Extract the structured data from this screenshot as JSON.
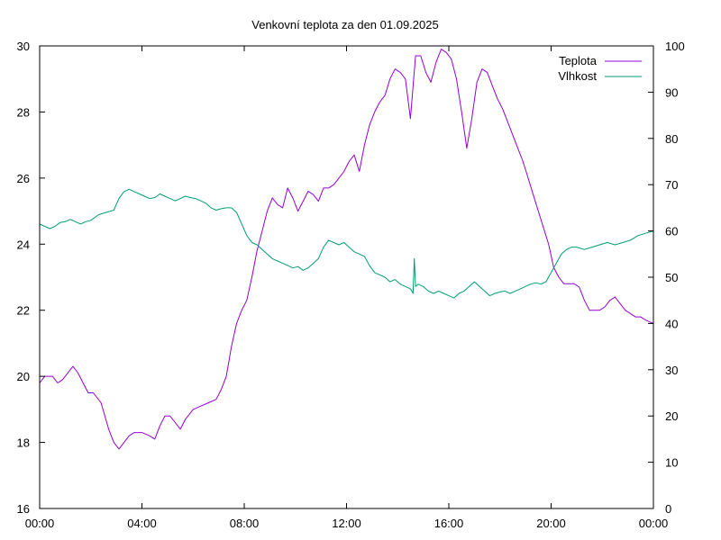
{
  "chart_data": {
    "type": "line",
    "title": "Venkovní teplota za den 01.09.2025",
    "x_tick_labels": [
      "00:00",
      "04:00",
      "08:00",
      "12:00",
      "16:00",
      "20:00",
      "00:00"
    ],
    "x_range_hours": [
      0,
      24
    ],
    "y_left": {
      "range": [
        16,
        30
      ],
      "ticks": [
        16,
        18,
        20,
        22,
        24,
        26,
        28,
        30
      ]
    },
    "y_right": {
      "range": [
        0,
        100
      ],
      "ticks": [
        0,
        10,
        20,
        30,
        40,
        50,
        60,
        70,
        80,
        90,
        100
      ]
    },
    "grid": false,
    "legend_position": "top-right",
    "series": [
      {
        "name": "Teplota",
        "axis": "left",
        "color": "#9400d3",
        "x": [
          0,
          0.2,
          0.5,
          0.7,
          0.9,
          1.1,
          1.3,
          1.5,
          1.7,
          1.9,
          2.1,
          2.4,
          2.7,
          2.9,
          3.1,
          3.3,
          3.5,
          3.7,
          4.0,
          4.3,
          4.5,
          4.7,
          4.9,
          5.1,
          5.3,
          5.5,
          5.7,
          6.0,
          6.3,
          6.6,
          6.9,
          7.1,
          7.3,
          7.5,
          7.7,
          7.9,
          8.1,
          8.3,
          8.5,
          8.7,
          8.9,
          9.1,
          9.3,
          9.5,
          9.7,
          9.9,
          10.1,
          10.3,
          10.5,
          10.7,
          10.9,
          11.1,
          11.3,
          11.5,
          11.7,
          11.9,
          12.1,
          12.3,
          12.5,
          12.7,
          12.9,
          13.1,
          13.3,
          13.5,
          13.7,
          13.9,
          14.1,
          14.3,
          14.5,
          14.7,
          14.9,
          15.1,
          15.3,
          15.5,
          15.7,
          15.9,
          16.1,
          16.3,
          16.5,
          16.7,
          16.9,
          17.1,
          17.3,
          17.5,
          17.7,
          17.9,
          18.1,
          18.3,
          18.5,
          18.7,
          18.9,
          19.1,
          19.3,
          19.5,
          19.7,
          19.9,
          20.1,
          20.3,
          20.5,
          20.7,
          20.9,
          21.1,
          21.3,
          21.5,
          21.7,
          21.9,
          22.1,
          22.3,
          22.5,
          22.7,
          22.9,
          23.1,
          23.3,
          23.5,
          23.7,
          24.0
        ],
        "values": [
          19.8,
          20.0,
          20.0,
          19.8,
          19.9,
          20.1,
          20.3,
          20.1,
          19.8,
          19.5,
          19.5,
          19.2,
          18.4,
          18.0,
          17.8,
          18.0,
          18.2,
          18.3,
          18.3,
          18.2,
          18.1,
          18.5,
          18.8,
          18.8,
          18.6,
          18.4,
          18.7,
          19.0,
          19.1,
          19.2,
          19.3,
          19.6,
          20.0,
          20.9,
          21.6,
          22.0,
          22.3,
          23.0,
          23.8,
          24.4,
          25.0,
          25.4,
          25.2,
          25.1,
          25.7,
          25.4,
          25.0,
          25.3,
          25.6,
          25.5,
          25.3,
          25.7,
          25.7,
          25.8,
          26.0,
          26.2,
          26.5,
          26.7,
          26.2,
          27.0,
          27.6,
          28.0,
          28.3,
          28.5,
          29.0,
          29.3,
          29.2,
          29.0,
          27.8,
          29.7,
          29.7,
          29.2,
          28.9,
          29.5,
          29.9,
          29.8,
          29.6,
          29.0,
          28.0,
          26.9,
          27.8,
          28.9,
          29.3,
          29.2,
          28.8,
          28.4,
          28.1,
          27.7,
          27.3,
          26.9,
          26.5,
          26.0,
          25.5,
          25.0,
          24.5,
          24.0,
          23.3,
          23.0,
          22.8,
          22.8,
          22.8,
          22.7,
          22.3,
          22.0,
          22.0,
          22.0,
          22.1,
          22.3,
          22.4,
          22.2,
          22.0,
          21.9,
          21.8,
          21.8,
          21.7,
          21.6
        ]
      },
      {
        "name": "Vlhkost",
        "axis": "right",
        "color": "#009e73",
        "x": [
          0,
          0.2,
          0.4,
          0.6,
          0.8,
          1.0,
          1.2,
          1.4,
          1.6,
          1.8,
          2.0,
          2.3,
          2.6,
          2.9,
          3.1,
          3.3,
          3.5,
          3.7,
          3.9,
          4.1,
          4.3,
          4.5,
          4.7,
          4.9,
          5.1,
          5.3,
          5.5,
          5.7,
          5.9,
          6.1,
          6.3,
          6.5,
          6.7,
          6.9,
          7.1,
          7.3,
          7.5,
          7.7,
          7.9,
          8.1,
          8.3,
          8.5,
          8.7,
          8.9,
          9.1,
          9.3,
          9.5,
          9.7,
          9.9,
          10.1,
          10.3,
          10.5,
          10.7,
          10.9,
          11.1,
          11.3,
          11.5,
          11.7,
          11.9,
          12.1,
          12.3,
          12.5,
          12.7,
          12.9,
          13.1,
          13.3,
          13.5,
          13.7,
          13.9,
          14.1,
          14.3,
          14.5,
          14.6,
          14.65,
          14.7,
          14.8,
          15.0,
          15.2,
          15.4,
          15.6,
          15.8,
          16.0,
          16.2,
          16.4,
          16.6,
          16.8,
          17.0,
          17.2,
          17.4,
          17.6,
          17.8,
          18.0,
          18.2,
          18.4,
          18.6,
          18.8,
          19.0,
          19.2,
          19.4,
          19.6,
          19.8,
          20.0,
          20.2,
          20.4,
          20.6,
          20.8,
          21.0,
          21.3,
          21.6,
          21.9,
          22.2,
          22.5,
          22.8,
          23.1,
          23.4,
          23.7,
          24.0
        ],
        "values": [
          61.5,
          61.0,
          60.5,
          61.0,
          61.8,
          62.0,
          62.5,
          62.0,
          61.5,
          62.0,
          62.3,
          63.5,
          64.0,
          64.5,
          67.0,
          68.5,
          69.0,
          68.5,
          68.0,
          67.5,
          67.0,
          67.2,
          68.0,
          67.5,
          67.0,
          66.5,
          67.0,
          67.5,
          67.2,
          67.0,
          66.5,
          66.0,
          65.0,
          64.5,
          64.8,
          65.0,
          65.0,
          64.0,
          61.5,
          59.0,
          57.5,
          57.0,
          56.0,
          55.0,
          54.0,
          53.5,
          53.0,
          52.5,
          52.0,
          52.3,
          51.5,
          52.0,
          53.0,
          54.0,
          56.5,
          58.0,
          57.5,
          57.0,
          57.5,
          56.5,
          55.5,
          55.0,
          54.5,
          52.5,
          51.0,
          50.5,
          50.0,
          49.0,
          49.5,
          48.5,
          48.0,
          47.5,
          46.5,
          54.0,
          48.0,
          48.5,
          48.0,
          47.0,
          46.5,
          47.0,
          46.5,
          46.0,
          45.5,
          46.5,
          47.0,
          48.0,
          49.0,
          48.0,
          47.0,
          46.0,
          46.5,
          46.8,
          47.0,
          46.5,
          47.0,
          47.5,
          48.0,
          48.5,
          48.8,
          48.5,
          49.0,
          51.0,
          53.0,
          55.0,
          56.0,
          56.5,
          56.5,
          56.0,
          56.5,
          57.0,
          57.5,
          57.0,
          57.5,
          58.0,
          59.0,
          59.5,
          60.0
        ]
      }
    ]
  }
}
